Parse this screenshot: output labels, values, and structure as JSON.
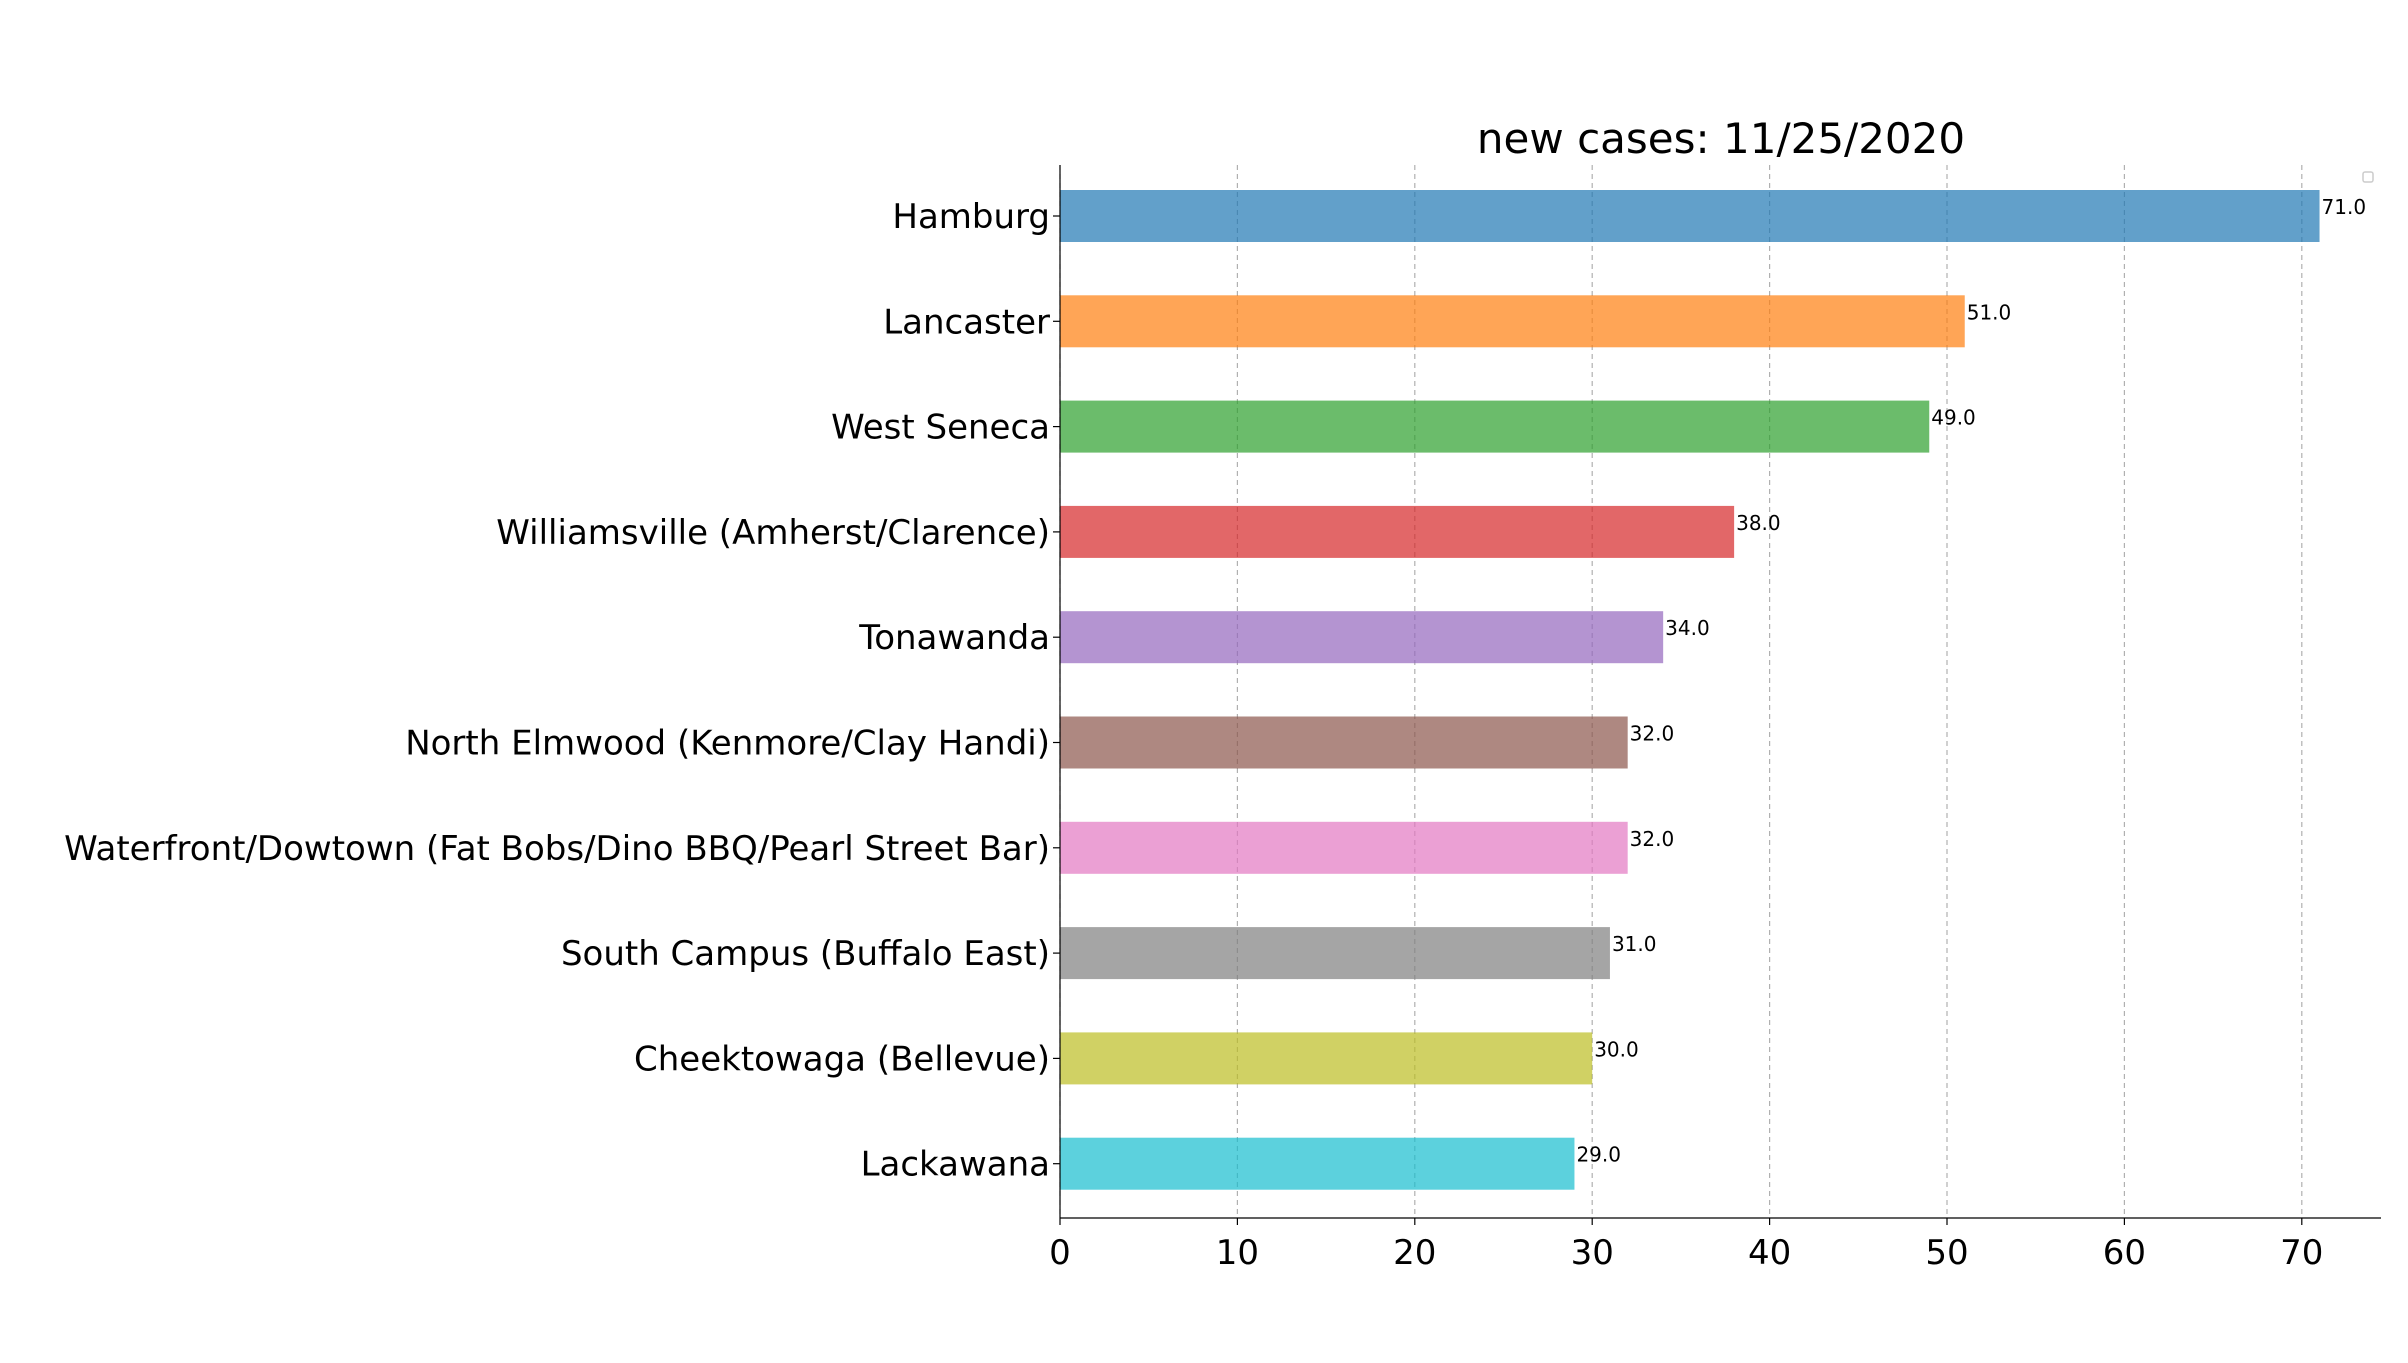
{
  "chart_data": {
    "type": "bar",
    "orientation": "horizontal",
    "title": "new cases: 11/25/2020",
    "xlabel": "",
    "ylabel": "",
    "xlim": [
      0,
      74.55
    ],
    "xticks": [
      0,
      10,
      20,
      30,
      40,
      50,
      60,
      70
    ],
    "grid": "vertical dashed",
    "legend": "top-right (empty)",
    "categories": [
      "Hamburg",
      "Lancaster",
      "West Seneca",
      "Williamsville (Amherst/Clarence)",
      "Tonawanda",
      "North Elmwood (Kenmore/Clay Handi)",
      "Waterfront/Dowtown (Fat Bobs/Dino BBQ/Pearl Street Bar)",
      "South Campus (Buffalo East)",
      "Cheektowaga (Bellevue)",
      "Lackawana"
    ],
    "values": [
      71,
      51,
      49,
      38,
      34,
      32,
      32,
      31,
      30,
      29
    ],
    "value_labels": [
      "71.0",
      "51.0",
      "49.0",
      "38.0",
      "34.0",
      "32.0",
      "32.0",
      "31.0",
      "30.0",
      "29.0"
    ],
    "colors": [
      "#1f77b4",
      "#ff7f0e",
      "#2ca02c",
      "#d62728",
      "#9467bd",
      "#8c564b",
      "#e377c2",
      "#7f7f7f",
      "#bcbd22",
      "#17becf"
    ],
    "bar_opacity": 0.7
  }
}
